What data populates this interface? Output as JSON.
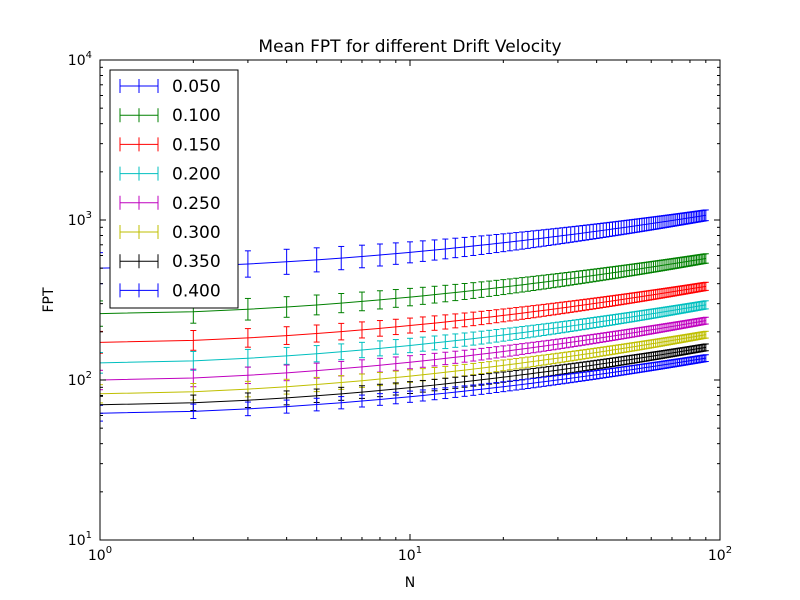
{
  "chart_data": {
    "type": "line",
    "title": "Mean FPT for different Drift Velocity",
    "xlabel": "N",
    "ylabel": "FPT",
    "xscale": "log",
    "yscale": "log",
    "xlim": [
      1,
      100
    ],
    "ylim": [
      10,
      10000
    ],
    "grid": false,
    "legend_position": "upper-left",
    "x_ticks": [
      {
        "value": 1,
        "base": "10",
        "exp": "0"
      },
      {
        "value": 10,
        "base": "10",
        "exp": "1"
      },
      {
        "value": 100,
        "base": "10",
        "exp": "2"
      }
    ],
    "y_ticks": [
      {
        "value": 10,
        "base": "10",
        "exp": "1"
      },
      {
        "value": 100,
        "base": "10",
        "exp": "2"
      },
      {
        "value": 1000,
        "base": "10",
        "exp": "3"
      },
      {
        "value": 10000,
        "base": "10",
        "exp": "4"
      }
    ],
    "x": [
      1,
      2,
      3,
      4,
      5,
      6,
      7,
      8,
      9,
      10,
      11,
      12,
      13,
      14,
      15,
      16,
      17,
      18,
      19,
      20,
      21,
      22,
      23,
      24,
      25,
      26,
      27,
      28,
      29,
      30,
      31,
      32,
      33,
      34,
      35,
      36,
      37,
      38,
      39,
      40,
      41,
      42,
      43,
      44,
      45,
      46,
      47,
      48,
      49,
      50,
      51,
      52,
      53,
      54,
      55,
      56,
      57,
      58,
      59,
      60,
      61,
      62,
      63,
      64,
      65,
      66,
      67,
      68,
      69,
      70,
      71,
      72,
      73,
      74,
      75,
      76,
      77,
      78,
      79,
      80,
      81,
      82,
      83,
      84,
      85,
      86,
      87,
      88,
      89,
      90
    ],
    "series": [
      {
        "name": "0.050",
        "color": "#0000ff",
        "y_start": 500,
        "y_end": 1070,
        "rel_err_start": 0.25,
        "rel_err_end": 0.08
      },
      {
        "name": "0.100",
        "color": "#008000",
        "y_start": 260,
        "y_end": 575,
        "rel_err_start": 0.2,
        "rel_err_end": 0.07
      },
      {
        "name": "0.150",
        "color": "#ff0000",
        "y_start": 172,
        "y_end": 385,
        "rel_err_start": 0.17,
        "rel_err_end": 0.06
      },
      {
        "name": "0.200",
        "color": "#00bfbf",
        "y_start": 128,
        "y_end": 295,
        "rel_err_start": 0.16,
        "rel_err_end": 0.06
      },
      {
        "name": "0.250",
        "color": "#bf00bf",
        "y_start": 100,
        "y_end": 235,
        "rel_err_start": 0.15,
        "rel_err_end": 0.05
      },
      {
        "name": "0.300",
        "color": "#bfbf00",
        "y_start": 82,
        "y_end": 192,
        "rel_err_start": 0.14,
        "rel_err_end": 0.05
      },
      {
        "name": "0.350",
        "color": "#000000",
        "y_start": 70,
        "y_end": 160,
        "rel_err_start": 0.13,
        "rel_err_end": 0.05
      },
      {
        "name": "0.400",
        "color": "#0000ff",
        "y_start": 62,
        "y_end": 137,
        "rel_err_start": 0.12,
        "rel_err_end": 0.05
      }
    ]
  }
}
